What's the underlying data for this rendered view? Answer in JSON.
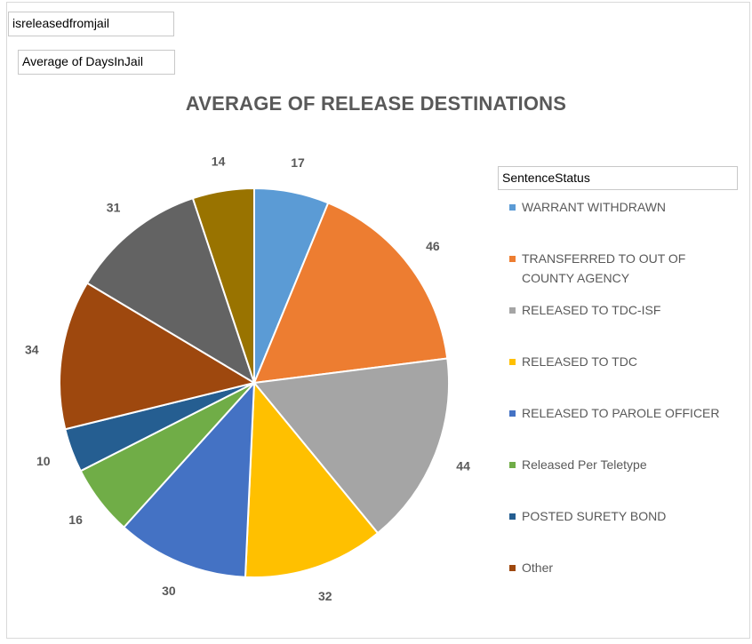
{
  "pivot": {
    "filter_field": "isreleasedfromjail",
    "value_field": "Average of DaysInJail"
  },
  "chart_data": {
    "type": "pie",
    "title": "AVERAGE OF RELEASE DESTINATIONS",
    "legend_title": "SentenceStatus",
    "legend_position": "right",
    "slices": [
      {
        "label": "WARRANT WITHDRAWN",
        "value": 17,
        "color": "#5b9bd5"
      },
      {
        "label": "TRANSFERRED TO OUT OF COUNTY AGENCY",
        "value": 46,
        "color": "#ed7d31"
      },
      {
        "label": "RELEASED TO TDC-ISF",
        "value": 44,
        "color": "#a5a5a5"
      },
      {
        "label": "RELEASED TO TDC",
        "value": 32,
        "color": "#ffc000"
      },
      {
        "label": "RELEASED TO PAROLE OFFICER",
        "value": 30,
        "color": "#4472c4"
      },
      {
        "label": "Released Per Teletype",
        "value": 16,
        "color": "#70ad47"
      },
      {
        "label": "POSTED SURETY BOND",
        "value": 10,
        "color": "#255e91"
      },
      {
        "label": "Other",
        "value": 34,
        "color": "#9e480e"
      },
      {
        "label": "",
        "value": 31,
        "color": "#636363"
      },
      {
        "label": "",
        "value": 14,
        "color": "#997300"
      }
    ]
  }
}
